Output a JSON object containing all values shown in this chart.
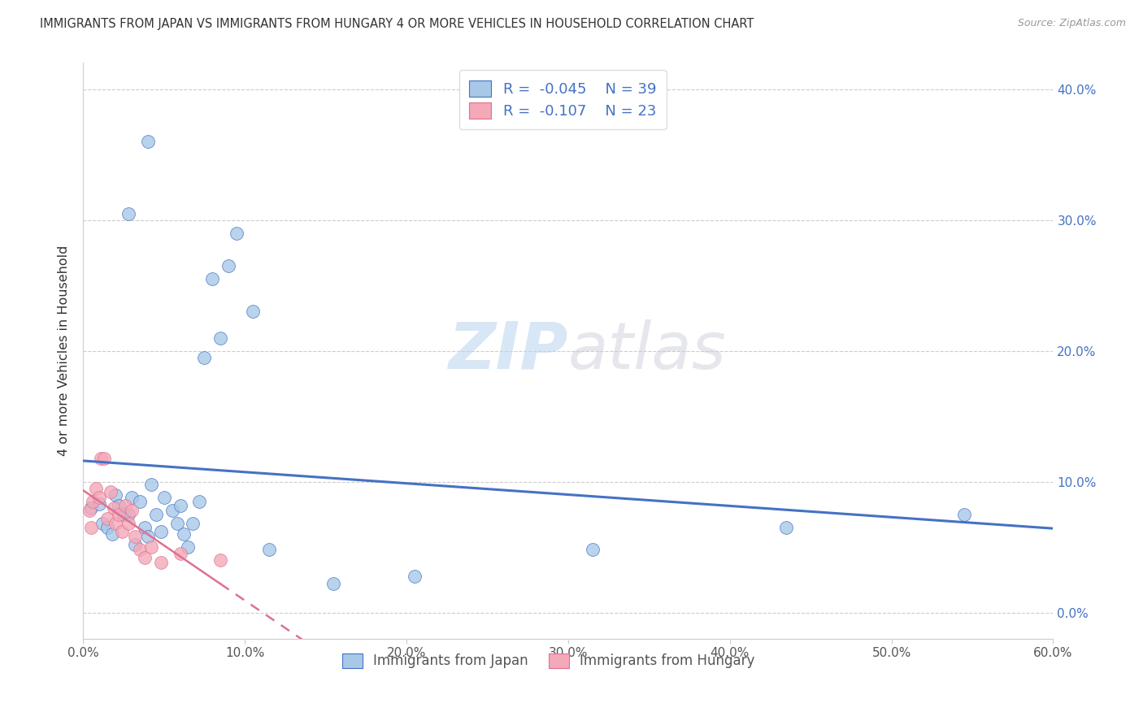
{
  "title": "IMMIGRANTS FROM JAPAN VS IMMIGRANTS FROM HUNGARY 4 OR MORE VEHICLES IN HOUSEHOLD CORRELATION CHART",
  "source": "Source: ZipAtlas.com",
  "ylabel": "4 or more Vehicles in Household",
  "legend_japan": "Immigrants from Japan",
  "legend_hungary": "Immigrants from Hungary",
  "R_japan": -0.045,
  "N_japan": 39,
  "R_hungary": -0.107,
  "N_hungary": 23,
  "xlim": [
    0.0,
    0.6
  ],
  "ylim": [
    -0.02,
    0.42
  ],
  "xticks": [
    0.0,
    0.1,
    0.2,
    0.3,
    0.4,
    0.5,
    0.6
  ],
  "yticks": [
    0.0,
    0.1,
    0.2,
    0.3,
    0.4
  ],
  "color_japan": "#a8c8e8",
  "color_hungary": "#f4a8b8",
  "line_color_japan": "#4472c4",
  "line_color_hungary": "#e07090",
  "watermark_zip": "ZIP",
  "watermark_atlas": "atlas",
  "japan_x": [
    0.005,
    0.01,
    0.012,
    0.015,
    0.018,
    0.02,
    0.022,
    0.025,
    0.028,
    0.03,
    0.032,
    0.035,
    0.038,
    0.04,
    0.042,
    0.045,
    0.048,
    0.05,
    0.055,
    0.058,
    0.06,
    0.062,
    0.065,
    0.068,
    0.072,
    0.075,
    0.08,
    0.085,
    0.09,
    0.095,
    0.105,
    0.115,
    0.155,
    0.205,
    0.315,
    0.435,
    0.545,
    0.028,
    0.04
  ],
  "japan_y": [
    0.08,
    0.083,
    0.068,
    0.065,
    0.06,
    0.09,
    0.082,
    0.075,
    0.075,
    0.088,
    0.052,
    0.085,
    0.065,
    0.058,
    0.098,
    0.075,
    0.062,
    0.088,
    0.078,
    0.068,
    0.082,
    0.06,
    0.05,
    0.068,
    0.085,
    0.195,
    0.255,
    0.21,
    0.265,
    0.29,
    0.23,
    0.048,
    0.022,
    0.028,
    0.048,
    0.065,
    0.075,
    0.305,
    0.36
  ],
  "hungary_x": [
    0.004,
    0.005,
    0.006,
    0.008,
    0.01,
    0.011,
    0.013,
    0.015,
    0.017,
    0.019,
    0.02,
    0.022,
    0.024,
    0.026,
    0.028,
    0.03,
    0.032,
    0.035,
    0.038,
    0.042,
    0.048,
    0.06,
    0.085
  ],
  "hungary_y": [
    0.078,
    0.065,
    0.085,
    0.095,
    0.088,
    0.118,
    0.118,
    0.072,
    0.092,
    0.08,
    0.068,
    0.075,
    0.062,
    0.082,
    0.068,
    0.078,
    0.058,
    0.048,
    0.042,
    0.05,
    0.038,
    0.045,
    0.04
  ]
}
